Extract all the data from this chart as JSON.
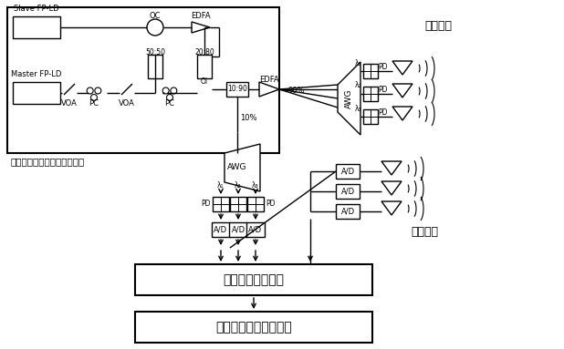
{
  "bg_color": "#ffffff",
  "chaotic_label": "混沌微波光子超宽带产生单元",
  "digital_module": "数字信号采集模块",
  "tumor_module": "乳腺肿瘤分类识别模块",
  "tx_label": "发射天线",
  "rx_label": "接收天线",
  "fig_width": 6.18,
  "fig_height": 3.83,
  "dpi": 100
}
